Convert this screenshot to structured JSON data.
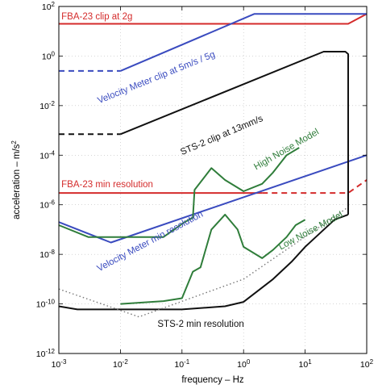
{
  "chart_data": {
    "type": "line",
    "title": "",
    "xlabel": "frequency  –  Hz",
    "ylabel": "acceleration  –  m/s",
    "ylabel_superscript": "2",
    "x_scale": "log",
    "y_scale": "log",
    "xlim": [
      0.001,
      100
    ],
    "ylim": [
      1e-12,
      100
    ],
    "grid": true,
    "legend": "none",
    "x_ticks": [
      {
        "value": 0.001,
        "base": "10",
        "exp": "-3"
      },
      {
        "value": 0.01,
        "base": "10",
        "exp": "-2"
      },
      {
        "value": 0.1,
        "base": "10",
        "exp": "-1"
      },
      {
        "value": 1,
        "base": "10",
        "exp": "0"
      },
      {
        "value": 10,
        "base": "10",
        "exp": "1"
      },
      {
        "value": 100,
        "base": "10",
        "exp": "2"
      }
    ],
    "y_ticks": [
      {
        "value": 1e-12,
        "base": "10",
        "exp": "-12"
      },
      {
        "value": 1e-10,
        "base": "10",
        "exp": "-10"
      },
      {
        "value": 1e-08,
        "base": "10",
        "exp": "-8"
      },
      {
        "value": 1e-06,
        "base": "10",
        "exp": "-6"
      },
      {
        "value": 0.0001,
        "base": "10",
        "exp": "-4"
      },
      {
        "value": 0.01,
        "base": "10",
        "exp": "-2"
      },
      {
        "value": 1,
        "base": "10",
        "exp": "0"
      },
      {
        "value": 100,
        "base": "10",
        "exp": "2"
      }
    ],
    "colors": {
      "red": "#d42b2b",
      "blue": "#3a4bbf",
      "black": "#111111",
      "green": "#2f7d3a",
      "dotted": "#777777"
    },
    "series": [
      {
        "id": "fba23-clip",
        "color": "red",
        "style": "solid",
        "points": [
          [
            0.001,
            20
          ],
          [
            50,
            20
          ],
          [
            100,
            50
          ]
        ]
      },
      {
        "id": "fba23-min",
        "color": "red",
        "style": "solid",
        "points": [
          [
            0.001,
            3e-06
          ],
          [
            2,
            3e-06
          ]
        ]
      },
      {
        "id": "fba23-min-ext",
        "color": "red",
        "style": "dashed",
        "points": [
          [
            2,
            3e-06
          ],
          [
            50,
            3e-06
          ],
          [
            100,
            1e-05
          ]
        ]
      },
      {
        "id": "vm-clip-dashed",
        "color": "blue",
        "style": "dashed",
        "points": [
          [
            0.001,
            0.25
          ],
          [
            0.01,
            0.25
          ]
        ]
      },
      {
        "id": "vm-clip",
        "color": "blue",
        "style": "solid",
        "points": [
          [
            0.01,
            0.25
          ],
          [
            1.5,
            50
          ],
          [
            100,
            50
          ]
        ]
      },
      {
        "id": "vm-min",
        "color": "blue",
        "style": "solid",
        "points": [
          [
            0.001,
            2e-07
          ],
          [
            0.007,
            3e-08
          ],
          [
            100,
            0.0001
          ]
        ]
      },
      {
        "id": "sts2-clip-dashed",
        "color": "black",
        "style": "dashed",
        "points": [
          [
            0.001,
            0.0007
          ],
          [
            0.01,
            0.0007
          ]
        ]
      },
      {
        "id": "sts2-clip",
        "color": "black",
        "style": "solid",
        "points": [
          [
            0.01,
            0.0007
          ],
          [
            20,
            1.5
          ],
          [
            45,
            1.5
          ],
          [
            50,
            1.2
          ],
          [
            50,
            4e-07
          ]
        ]
      },
      {
        "id": "sts2-min",
        "color": "black",
        "style": "solid",
        "points": [
          [
            0.001,
            8e-11
          ],
          [
            0.002,
            6e-11
          ],
          [
            0.1,
            6e-11
          ],
          [
            0.5,
            8e-11
          ],
          [
            1,
            1.2e-10
          ],
          [
            3,
            1e-09
          ],
          [
            6,
            5e-09
          ],
          [
            10,
            2e-08
          ],
          [
            30,
            2.5e-07
          ],
          [
            50,
            4e-07
          ]
        ]
      },
      {
        "id": "hnm",
        "color": "green",
        "style": "solid",
        "points": [
          [
            0.001,
            1.5e-07
          ],
          [
            0.003,
            5e-08
          ],
          [
            0.01,
            5e-08
          ],
          [
            0.05,
            5e-08
          ],
          [
            0.11,
            2e-07
          ],
          [
            0.15,
            3e-07
          ],
          [
            0.16,
            4e-06
          ],
          [
            0.3,
            3e-05
          ],
          [
            0.5,
            1e-05
          ],
          [
            1,
            3.5e-06
          ],
          [
            2,
            7e-06
          ],
          [
            3,
            2e-05
          ],
          [
            5,
            0.0001
          ],
          [
            8,
            0.0002
          ]
        ]
      },
      {
        "id": "lnm",
        "color": "green",
        "style": "solid",
        "points": [
          [
            0.01,
            1e-10
          ],
          [
            0.05,
            1.3e-10
          ],
          [
            0.1,
            1.7e-10
          ],
          [
            0.15,
            2e-09
          ],
          [
            0.2,
            3e-09
          ],
          [
            0.3,
            1e-07
          ],
          [
            0.5,
            4e-07
          ],
          [
            0.8,
            1e-07
          ],
          [
            1,
            2e-08
          ],
          [
            2,
            7e-09
          ],
          [
            3,
            1.5e-08
          ],
          [
            5,
            5e-08
          ],
          [
            7,
            1.5e-07
          ],
          [
            10,
            2.5e-07
          ]
        ]
      },
      {
        "id": "dotted-ramp",
        "color": "dotted",
        "style": "dotted",
        "points": [
          [
            0.001,
            4e-10
          ],
          [
            0.02,
            3e-11
          ],
          [
            1,
            1e-09
          ],
          [
            50,
            8e-07
          ]
        ]
      }
    ],
    "annotations": [
      {
        "id": "fba23-clip-label",
        "text": "FBA-23 clip at 2g",
        "color": "red",
        "x": 0.0011,
        "y": 30,
        "angle": 0
      },
      {
        "id": "vm-clip-label",
        "text": "Velocity Meter clip at 5m/s / 5g",
        "color": "blue",
        "x": 0.0045,
        "y": 0.012,
        "angle": -22
      },
      {
        "id": "sts2-clip-label",
        "text": "STS-2 clip at 13mm/s",
        "color": "black",
        "x": 0.1,
        "y": 0.0001,
        "angle": -23
      },
      {
        "id": "hnm-label",
        "text": "High Noise Model",
        "color": "green",
        "x": 1.6,
        "y": 2.5e-05,
        "angle": -30
      },
      {
        "id": "fba23-min-label",
        "text": "FBA-23 min resolution",
        "color": "red",
        "x": 0.0011,
        "y": 5e-06,
        "angle": 0
      },
      {
        "id": "vm-min-label",
        "text": "Velocity Meter min resolution",
        "color": "blue",
        "x": 0.0045,
        "y": 2e-09,
        "angle": -28
      },
      {
        "id": "lnm-label",
        "text": "Low Noise Model",
        "color": "green",
        "x": 4,
        "y": 1.5e-08,
        "angle": -28
      },
      {
        "id": "sts2-min-label",
        "text": "STS-2 min resolution",
        "color": "black",
        "x": 0.04,
        "y": 1.2e-11,
        "angle": 0
      }
    ]
  }
}
